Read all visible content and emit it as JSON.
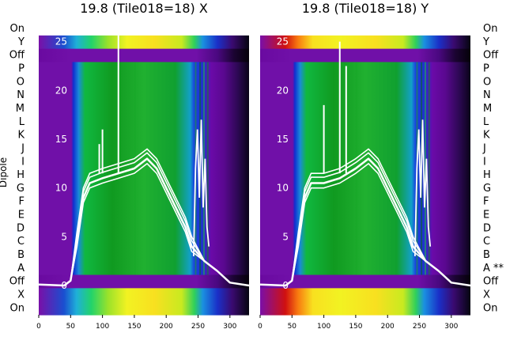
{
  "chart_data": [
    {
      "type": "heatmap",
      "title": "19.8 (Tile018=18) X",
      "side_label": "Dipole",
      "row_labels": [
        "On",
        "Y",
        "Off",
        "P",
        "O",
        "N",
        "M",
        "L",
        "K",
        "J",
        "I",
        "H",
        "G",
        "F",
        "E",
        "D",
        "C",
        "B",
        "A",
        "Off",
        "X",
        "On"
      ],
      "row_state": [
        "on",
        "on",
        "off",
        "data",
        "data",
        "data",
        "data",
        "data",
        "data",
        "data",
        "data",
        "data",
        "data",
        "data",
        "data",
        "data",
        "data",
        "data",
        "data",
        "off",
        "on",
        "on"
      ],
      "xlim": [
        0,
        330
      ],
      "xticks": [
        0,
        50,
        100,
        150,
        200,
        250,
        300
      ],
      "ylim": [
        -3,
        27
      ],
      "yticks": [
        0,
        5,
        10,
        15,
        20,
        25
      ],
      "band_edges": [
        55,
        65,
        85,
        95,
        110,
        125,
        140,
        155,
        165,
        175,
        185,
        200,
        215,
        225,
        240,
        245,
        270,
        280,
        300,
        320
      ],
      "overlay_series": [
        {
          "x": [
            0,
            40,
            50,
            60,
            70,
            80,
            100,
            125,
            150,
            170,
            185,
            200,
            215,
            230,
            240,
            260,
            280,
            300,
            330
          ],
          "y": [
            0.1,
            0.0,
            0.5,
            4.5,
            9,
            10.5,
            11,
            11.5,
            12,
            13,
            12,
            10,
            8,
            6,
            4,
            2.5,
            1.5,
            0.3,
            0.0
          ]
        }
      ],
      "spikes": [
        {
          "x": 125,
          "y": 27
        },
        {
          "x": 95,
          "y": 14.5
        },
        {
          "x": 100,
          "y": 16
        }
      ]
    },
    {
      "type": "heatmap",
      "title": "19.8 (Tile018=18) Y",
      "row_labels": [
        "On",
        "Y",
        "Off",
        "P",
        "O",
        "N",
        "M",
        "L",
        "K",
        "J",
        "I",
        "H",
        "G",
        "F",
        "E",
        "D",
        "C",
        "B",
        "A **",
        "Off",
        "X",
        "On"
      ],
      "row_state": [
        "on",
        "on",
        "off",
        "data",
        "data",
        "data",
        "data",
        "data",
        "data",
        "data",
        "data",
        "data",
        "data",
        "data",
        "data",
        "data",
        "data",
        "data",
        "data",
        "off",
        "on",
        "on"
      ],
      "xlim": [
        0,
        330
      ],
      "xticks": [
        0,
        50,
        100,
        150,
        200,
        250,
        300
      ],
      "ylim": [
        -3,
        27
      ],
      "yticks": [
        0,
        5,
        10,
        15,
        20,
        25
      ],
      "overlay_series": [
        {
          "x": [
            0,
            40,
            50,
            60,
            70,
            80,
            100,
            125,
            150,
            170,
            185,
            200,
            215,
            230,
            240,
            260,
            280,
            300,
            330
          ],
          "y": [
            0.1,
            0.0,
            0.5,
            4.5,
            9,
            10.5,
            10.5,
            11,
            12,
            13,
            12,
            10,
            8,
            6,
            4,
            2.5,
            1.5,
            0.3,
            0.0
          ]
        }
      ],
      "spikes": [
        {
          "x": 125,
          "y": 25
        },
        {
          "x": 135,
          "y": 22.5
        },
        {
          "x": 100,
          "y": 18.5
        }
      ]
    }
  ]
}
